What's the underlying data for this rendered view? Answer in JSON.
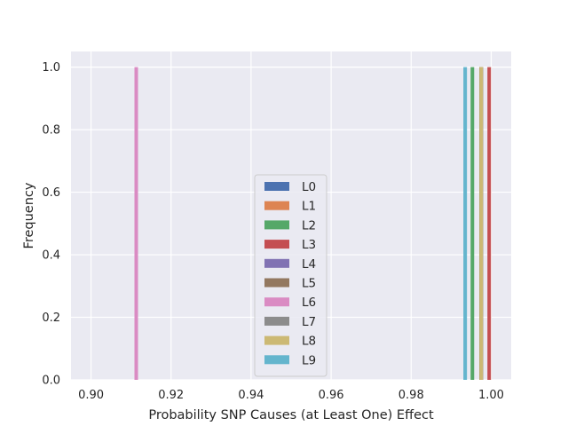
{
  "chart_data": {
    "type": "bar",
    "title": "",
    "xlabel": "Probability SNP Causes (at Least One) Effect",
    "ylabel": "Frequency",
    "xlim": [
      0.895,
      1.005
    ],
    "ylim": [
      0.0,
      1.05
    ],
    "xticks": [
      0.9,
      0.92,
      0.94,
      0.96,
      0.98,
      1.0
    ],
    "xtick_labels": [
      "0.90",
      "0.92",
      "0.94",
      "0.96",
      "0.98",
      "1.00"
    ],
    "yticks": [
      0.0,
      0.2,
      0.4,
      0.6,
      0.8,
      1.0
    ],
    "ytick_labels": [
      "0.0",
      "0.2",
      "0.4",
      "0.6",
      "0.8",
      "1.0"
    ],
    "grid": true,
    "legend_position": "center",
    "series": [
      {
        "name": "L0",
        "color": "#4c72b0",
        "x": 0.9975,
        "value": 1.0
      },
      {
        "name": "L1",
        "color": "#dd8452",
        "x": 0.9975,
        "value": 1.0
      },
      {
        "name": "L2",
        "color": "#55a868",
        "x": 0.9953,
        "value": 1.0
      },
      {
        "name": "L3",
        "color": "#c44e52",
        "x": 0.9995,
        "value": 1.0
      },
      {
        "name": "L4",
        "color": "#8172b3",
        "x": 0.9975,
        "value": 1.0
      },
      {
        "name": "L5",
        "color": "#937860",
        "x": 0.9975,
        "value": 1.0
      },
      {
        "name": "L6",
        "color": "#da8bc3",
        "x": 0.9113,
        "value": 1.0
      },
      {
        "name": "L7",
        "color": "#8c8c8c",
        "x": 0.9975,
        "value": 1.0
      },
      {
        "name": "L8",
        "color": "#ccb974",
        "x": 0.9975,
        "value": 1.0
      },
      {
        "name": "L9",
        "color": "#64b5cd",
        "x": 0.9935,
        "value": 1.0
      }
    ]
  }
}
